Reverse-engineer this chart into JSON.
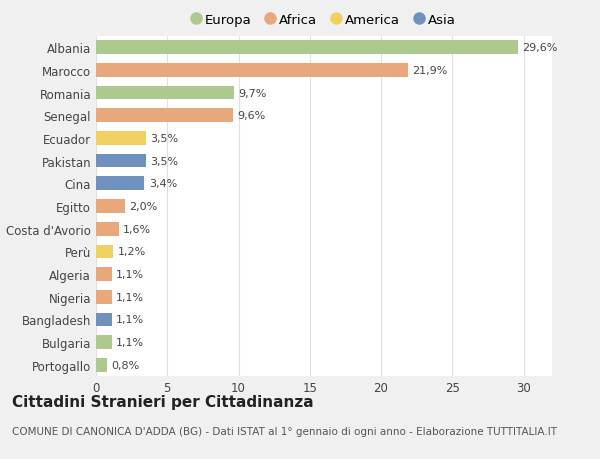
{
  "countries": [
    "Albania",
    "Marocco",
    "Romania",
    "Senegal",
    "Ecuador",
    "Pakistan",
    "Cina",
    "Egitto",
    "Costa d'Avorio",
    "Perù",
    "Algeria",
    "Nigeria",
    "Bangladesh",
    "Bulgaria",
    "Portogallo"
  ],
  "values": [
    29.6,
    21.9,
    9.7,
    9.6,
    3.5,
    3.5,
    3.4,
    2.0,
    1.6,
    1.2,
    1.1,
    1.1,
    1.1,
    1.1,
    0.8
  ],
  "labels": [
    "29,6%",
    "21,9%",
    "9,7%",
    "9,6%",
    "3,5%",
    "3,5%",
    "3,4%",
    "2,0%",
    "1,6%",
    "1,2%",
    "1,1%",
    "1,1%",
    "1,1%",
    "1,1%",
    "0,8%"
  ],
  "continents": [
    "Europa",
    "Africa",
    "Europa",
    "Africa",
    "America",
    "Asia",
    "Asia",
    "Africa",
    "Africa",
    "America",
    "Africa",
    "Africa",
    "Asia",
    "Europa",
    "Europa"
  ],
  "continent_colors": {
    "Europa": "#adc990",
    "Africa": "#e8a87c",
    "America": "#f0d060",
    "Asia": "#7090c0"
  },
  "legend_order": [
    "Europa",
    "Africa",
    "America",
    "Asia"
  ],
  "xlim": [
    0,
    32
  ],
  "xticks": [
    0,
    5,
    10,
    15,
    20,
    25,
    30
  ],
  "title": "Cittadini Stranieri per Cittadinanza",
  "subtitle": "COMUNE DI CANONICA D'ADDA (BG) - Dati ISTAT al 1° gennaio di ogni anno - Elaborazione TUTTITALIA.IT",
  "background_color": "#f0f0f0",
  "plot_bg_color": "#ffffff",
  "grid_color": "#e0e0e0",
  "title_fontsize": 11,
  "subtitle_fontsize": 7.5,
  "label_fontsize": 8,
  "tick_fontsize": 8.5,
  "legend_fontsize": 9.5,
  "bar_height": 0.6
}
